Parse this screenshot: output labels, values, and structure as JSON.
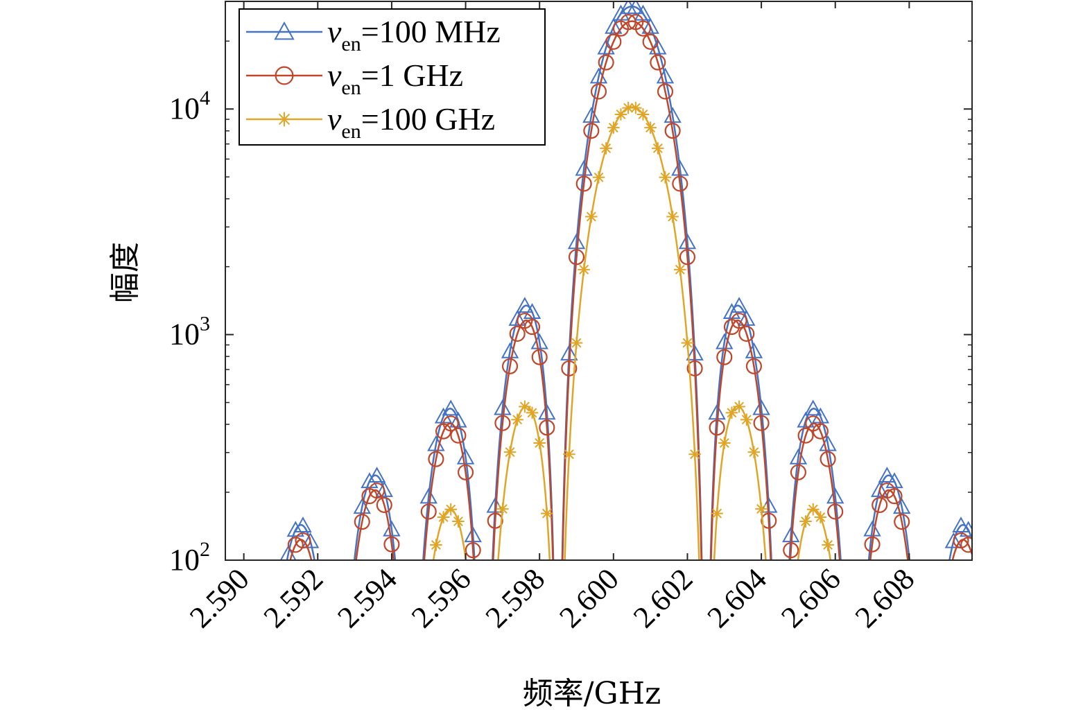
{
  "chart_data": {
    "type": "line",
    "title": "",
    "xlabel": "频率/GHz",
    "ylabel": "幅度",
    "xlim": [
      2.5895,
      2.6097
    ],
    "ylim": [
      100,
      30000
    ],
    "yscale": "log",
    "grid": false,
    "legend_position": "top-left",
    "x_ticks": [
      2.59,
      2.592,
      2.594,
      2.596,
      2.598,
      2.6,
      2.602,
      2.604,
      2.606,
      2.608
    ],
    "x_tick_labels": [
      "2.590",
      "2.592",
      "2.594",
      "2.596",
      "2.598",
      "2.600",
      "2.602",
      "2.604",
      "2.606",
      "2.608"
    ],
    "y_ticks": [
      {
        "value": 100,
        "base": "10",
        "exp": "2"
      },
      {
        "value": 1000,
        "base": "10",
        "exp": "3"
      },
      {
        "value": 10000,
        "base": "10",
        "exp": "4"
      }
    ],
    "series": [
      {
        "name": "=100 MHz",
        "prefix": "ν",
        "sub": "en",
        "color": "#4472c4",
        "marker": "triangle",
        "peak": 28500,
        "noise": 110
      },
      {
        "name": "=1 GHz",
        "prefix": "ν",
        "sub": "en",
        "color": "#c0462a",
        "marker": "circle",
        "peak": 24500,
        "noise": 105
      },
      {
        "name": "=100 GHz",
        "prefix": "ν",
        "sub": "en",
        "color": "#e0a526",
        "marker": "star",
        "peak": 10200,
        "noise": 95
      }
    ]
  }
}
